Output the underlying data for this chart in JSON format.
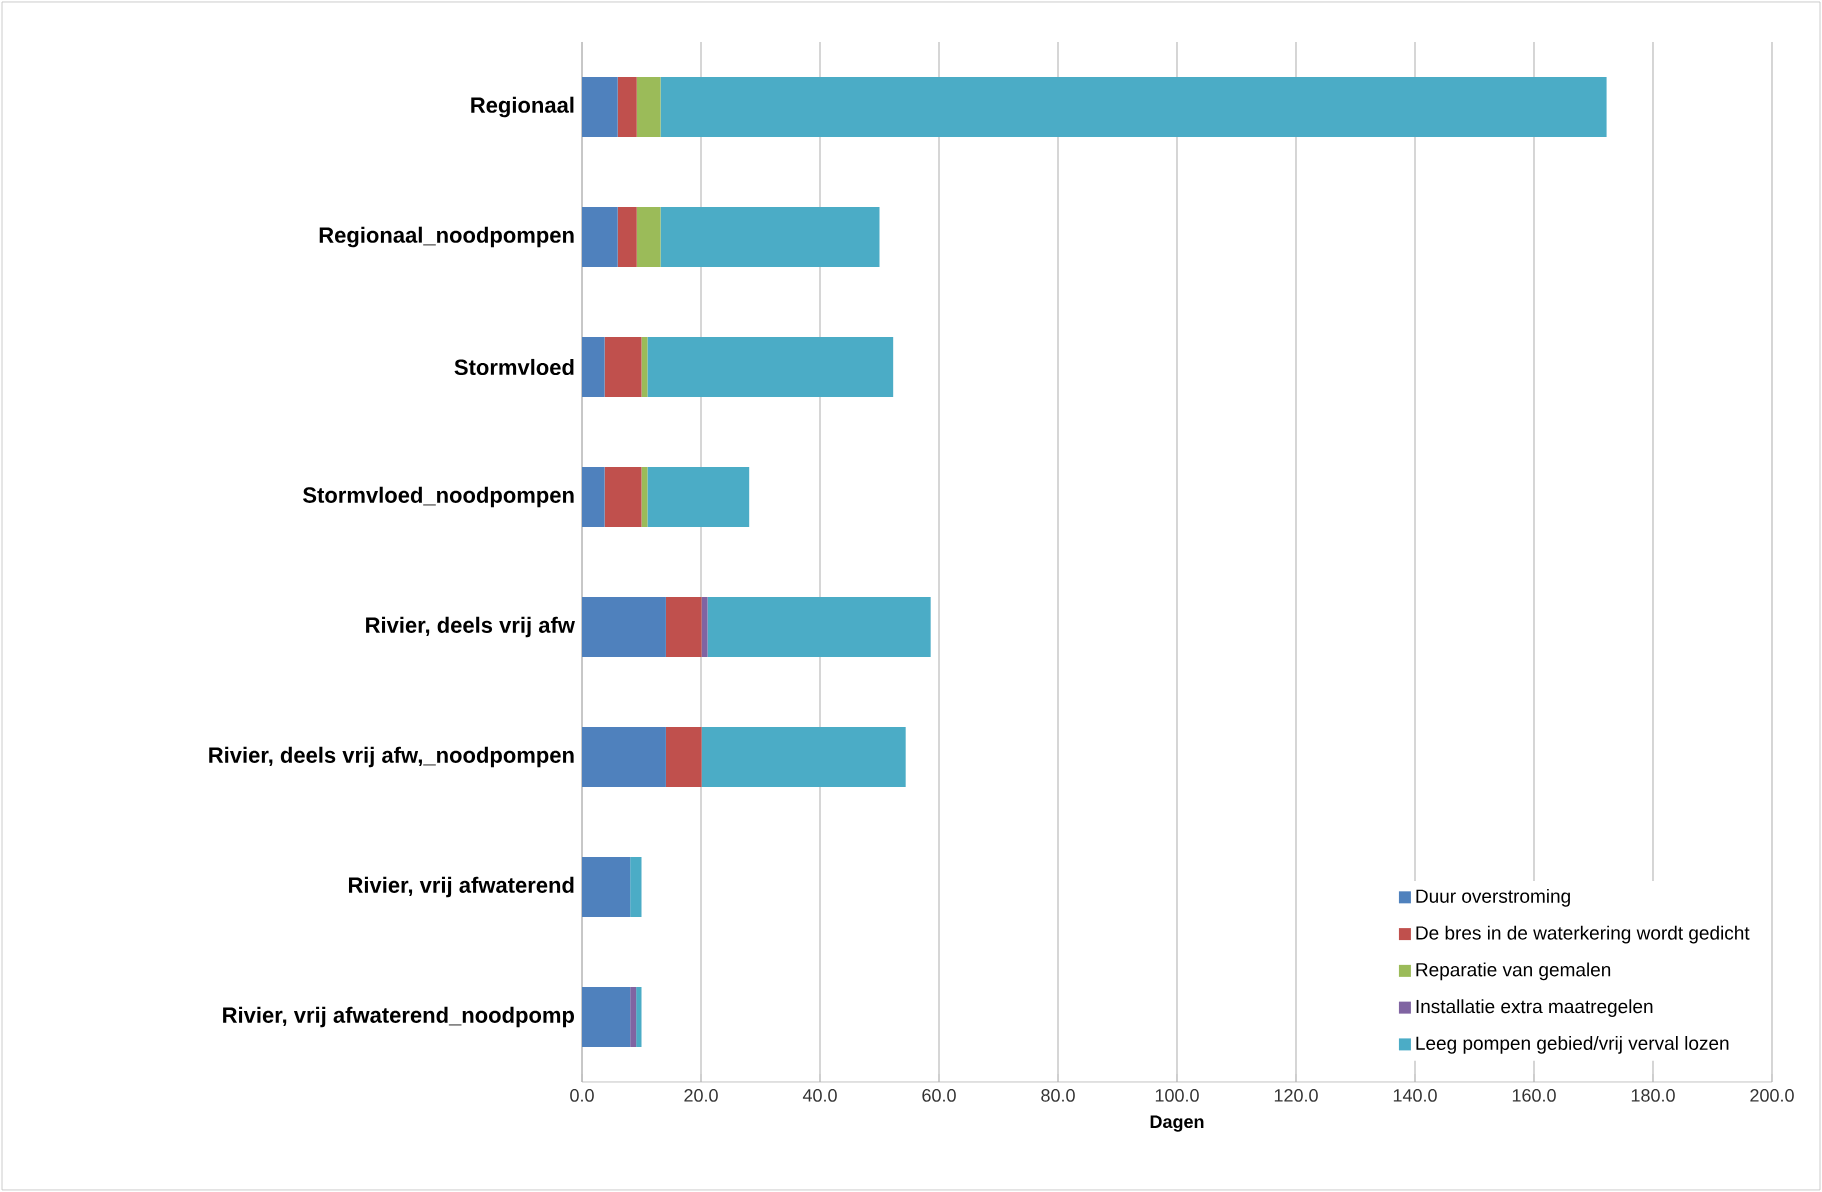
{
  "chart_data": {
    "type": "bar",
    "orientation": "horizontal",
    "stacked": true,
    "xlabel": "Dagen",
    "categories": [
      "Regionaal",
      "Regionaal_noodpompen",
      "Stormvloed",
      "Stormvloed_noodpompen",
      "Rivier,  deels vrij afw",
      "Rivier, deels vrij afw,_noodpompen",
      "Rivier,  vrij afwaterend",
      "Rivier, vrij afwaterend_noodpomp"
    ],
    "series": [
      {
        "name": "Duur overstroming",
        "color": "#4f81bd",
        "values": [
          6,
          6,
          3.8,
          3.8,
          14.1,
          14.1,
          8.1,
          8.1
        ]
      },
      {
        "name": "De bres in de waterkering wordt gedicht",
        "color": "#c0504d",
        "values": [
          3.2,
          3.2,
          6.2,
          6.2,
          6,
          6,
          0,
          0
        ]
      },
      {
        "name": "Reparatie van gemalen",
        "color": "#9bbb59",
        "values": [
          4,
          4,
          1,
          1,
          0,
          0,
          0,
          0
        ]
      },
      {
        "name": "Installatie extra maatregelen",
        "color": "#8064a2",
        "values": [
          0,
          0,
          0,
          0,
          1,
          0,
          0,
          1
        ]
      },
      {
        "name": "Leeg pompen gebied/vrij verval lozen",
        "color": "#4bacc6",
        "values": [
          159,
          36.8,
          41.3,
          17.1,
          37.5,
          34.3,
          1.9,
          0.9
        ]
      }
    ],
    "xlim": [
      0,
      200
    ],
    "xticks": [
      {
        "value": 0,
        "label": "0.0"
      },
      {
        "value": 20,
        "label": "20.0"
      },
      {
        "value": 40,
        "label": "40.0"
      },
      {
        "value": 60,
        "label": "60.0"
      },
      {
        "value": 80,
        "label": "80.0"
      },
      {
        "value": 100,
        "label": "100.0"
      },
      {
        "value": 120,
        "label": "120.0"
      },
      {
        "value": 140,
        "label": "140.0"
      },
      {
        "value": 160,
        "label": "160.0"
      },
      {
        "value": 180,
        "label": "180.0"
      },
      {
        "value": 200,
        "label": "200.0"
      }
    ],
    "grid": "x",
    "legend": "bottom right"
  }
}
